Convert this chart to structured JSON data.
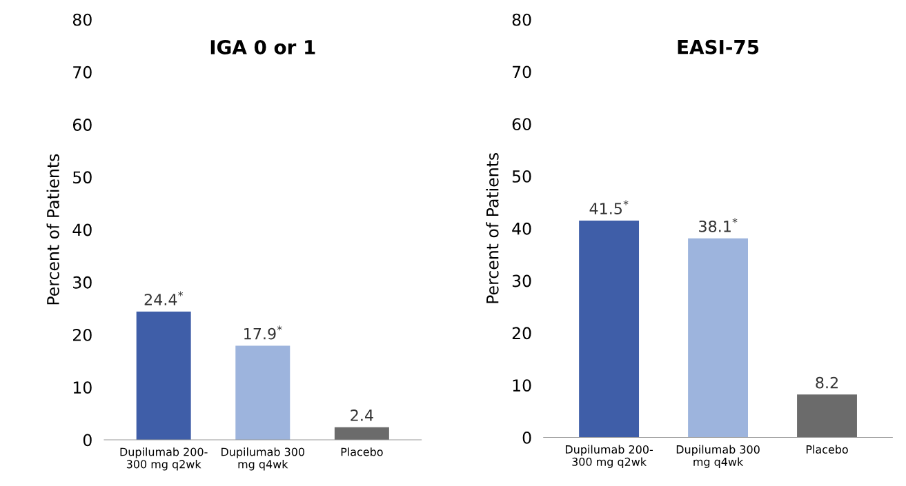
{
  "chart_data": [
    {
      "type": "bar",
      "title": "IGA 0 or 1",
      "ylabel": "Percent of Patients",
      "categories": [
        "Dupilumab 200-\n300 mg q2wk",
        "Dupilumab 300\nmg q4wk",
        "Placebo"
      ],
      "values": [
        24.4,
        17.9,
        2.4
      ],
      "colors": [
        "#3f5ea8",
        "#9db4dd",
        "#6b6b6b"
      ],
      "value_labels": [
        "24.4$^{*}$",
        "17.9$^{*}$",
        "2.4"
      ],
      "ylim": [
        0,
        80
      ],
      "yticks": [
        0,
        10,
        20,
        30,
        40,
        50,
        60,
        70,
        80
      ],
      "grid": false,
      "legend": false
    },
    {
      "type": "bar",
      "title": "EASI-75",
      "ylabel": "Percent of Patients",
      "categories": [
        "Dupilumab 200-\n300 mg q2wk",
        "Dupilumab 300\nmg q4wk",
        "Placebo"
      ],
      "values": [
        41.5,
        38.1,
        8.2
      ],
      "colors": [
        "#3f5ea8",
        "#9db4dd",
        "#6b6b6b"
      ],
      "value_labels": [
        "41.5$^{*}$",
        "38.1$^{*}$",
        "8.2"
      ],
      "ylim": [
        0,
        80
      ],
      "yticks": [
        0,
        10,
        20,
        30,
        40,
        50,
        60,
        70,
        80
      ],
      "grid": false,
      "legend": false
    }
  ]
}
